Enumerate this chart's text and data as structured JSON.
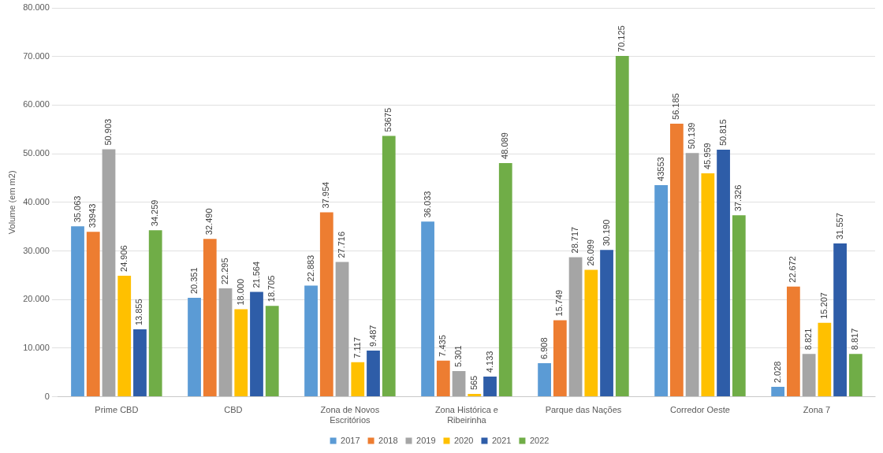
{
  "chart_data": {
    "type": "bar",
    "ylabel": "Volume (em m2)",
    "categories": [
      "Prime CBD",
      "CBD",
      "Zona de Novos Escritórios",
      "Zona Histórica e Ribeirinha",
      "Parque das Nações",
      "Corredor Oeste",
      "Zona 7"
    ],
    "series": [
      {
        "name": "2017",
        "color": "#5b9bd5",
        "values": [
          35063,
          20351,
          22883,
          36033,
          6908,
          43553,
          2028
        ],
        "value_labels": [
          "35.063",
          "20.351",
          "22.883",
          "36.033",
          "6.908",
          "43553",
          "2.028"
        ]
      },
      {
        "name": "2018",
        "color": "#ed7d31",
        "values": [
          33943,
          32490,
          37954,
          7435,
          15749,
          56185,
          22672
        ],
        "value_labels": [
          "33943",
          "32.490",
          "37.954",
          "7.435",
          "15.749",
          "56.185",
          "22.672"
        ]
      },
      {
        "name": "2019",
        "color": "#a5a5a5",
        "values": [
          50903,
          22295,
          27716,
          5301,
          28717,
          50139,
          8821
        ],
        "value_labels": [
          "50.903",
          "22.295",
          "27.716",
          "5.301",
          "28.717",
          "50.139",
          "8.821"
        ]
      },
      {
        "name": "2020",
        "color": "#ffc000",
        "values": [
          24906,
          18000,
          7117,
          565,
          26099,
          45959,
          15207
        ],
        "value_labels": [
          "24.906",
          "18.000",
          "7.117",
          "565",
          "26.099",
          "45.959",
          "15.207"
        ]
      },
      {
        "name": "2021",
        "color": "#2e5da8",
        "values": [
          13855,
          21564,
          9487,
          4133,
          30190,
          50815,
          31557
        ],
        "value_labels": [
          "13.855",
          "21.564",
          "9.487",
          "4.133",
          "30.190",
          "50.815",
          "31.557"
        ]
      },
      {
        "name": "2022",
        "color": "#70ad47",
        "values": [
          34259,
          18705,
          53675,
          48089,
          70125,
          37326,
          8817
        ],
        "value_labels": [
          "34.259",
          "18.705",
          "53675",
          "48.089",
          "70.125",
          "37.326",
          "8.817"
        ]
      }
    ],
    "ylim": [
      0,
      80000
    ],
    "yticks": [
      0,
      {
        "value": 10000,
        "label": "10.000"
      },
      {
        "value": 20000,
        "label": "20.000"
      },
      {
        "value": 30000,
        "label": "30.000"
      },
      {
        "value": 40000,
        "label": "40.000"
      },
      {
        "value": 50000,
        "label": "50.000"
      },
      {
        "value": 60000,
        "label": "60.000"
      },
      {
        "value": 70000,
        "label": "70.000"
      },
      {
        "value": 80000,
        "label": "80.000"
      }
    ],
    "grid": "y",
    "legend": "bottom"
  }
}
